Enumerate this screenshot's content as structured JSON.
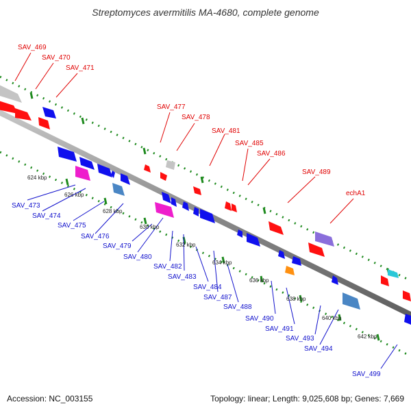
{
  "title": "Streptomyces avermitilis MA-4680, complete genome",
  "footer": {
    "accession": "Accession: NC_003155",
    "summary": "Topology: linear; Length: 9,025,608 bp; Genes: 7,669"
  },
  "colors": {
    "backbone": "#8a8a8a",
    "ticks": "#1e8a1e",
    "top_labels": "#e00000",
    "bottom_labels": "#1010cc"
  },
  "scale_labels": [
    "624 kbp",
    "626 kbp",
    "628 kbp",
    "630 kbp",
    "632 kbp",
    "634 kbp",
    "636 kbp",
    "638 kbp",
    "640 kbp",
    "642 kbp"
  ],
  "top_genes": [
    "SAV_469",
    "SAV_470",
    "SAV_471",
    "SAV_477",
    "SAV_478",
    "SAV_481",
    "SAV_485",
    "SAV_486",
    "SAV_489",
    "echA1"
  ],
  "bottom_genes": [
    "SAV_473",
    "SAV_474",
    "SAV_475",
    "SAV_476",
    "SAV_479",
    "SAV_480",
    "SAV_482",
    "SAV_483",
    "SAV_484",
    "SAV_487",
    "SAV_488",
    "SAV_490",
    "SAV_491",
    "SAV_493",
    "SAV_494",
    "SAV_499"
  ]
}
